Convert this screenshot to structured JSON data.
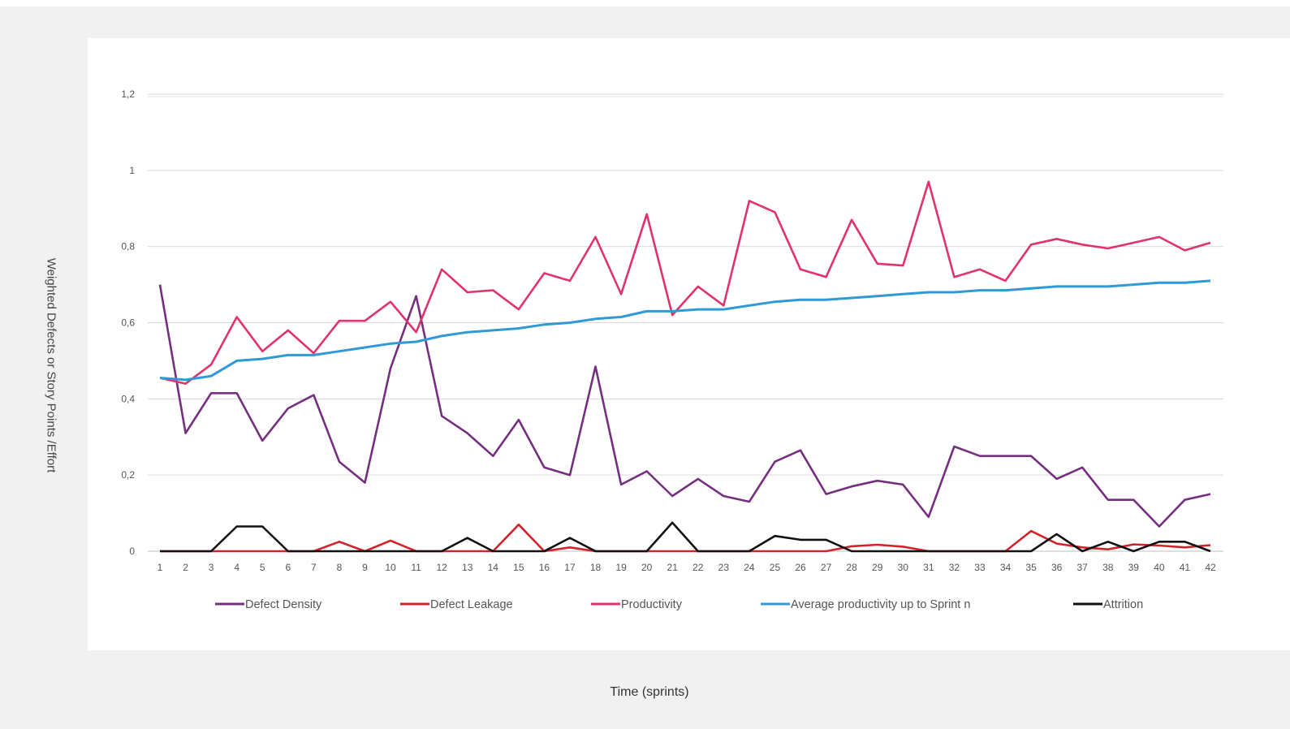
{
  "chart_data": {
    "type": "line",
    "title": "",
    "xlabel": "Time (sprints)",
    "ylabel": "Weighted Defects or Story Points /Effort",
    "ylim": [
      0,
      1.2
    ],
    "y_ticks": [
      "0",
      "0,2",
      "0,4",
      "0,6",
      "0,8",
      "1",
      "1,2"
    ],
    "x": [
      "1",
      "2",
      "3",
      "4",
      "5",
      "6",
      "7",
      "8",
      "9",
      "10",
      "11",
      "12",
      "13",
      "14",
      "15",
      "16",
      "17",
      "18",
      "19",
      "20",
      "21",
      "22",
      "23",
      "24",
      "25",
      "26",
      "27",
      "28",
      "29",
      "30",
      "31",
      "32",
      "33",
      "34",
      "35",
      "36",
      "37",
      "38",
      "39",
      "40",
      "41",
      "42"
    ],
    "grid": true,
    "legend_position": "bottom",
    "series": [
      {
        "name": "Defect Density",
        "color": "#74307f",
        "values": [
          0.7,
          0.31,
          0.415,
          0.415,
          0.29,
          0.375,
          0.41,
          0.235,
          0.18,
          0.48,
          0.67,
          0.355,
          0.31,
          0.25,
          0.345,
          0.22,
          0.2,
          0.485,
          0.175,
          0.21,
          0.145,
          0.19,
          0.145,
          0.13,
          0.235,
          0.265,
          0.15,
          0.17,
          0.185,
          0.175,
          0.09,
          0.275,
          0.25,
          0.25,
          0.25,
          0.19,
          0.22,
          0.135,
          0.135,
          0.065,
          0.135,
          0.15
        ]
      },
      {
        "name": "Defect Leakage",
        "color": "#d2232a",
        "values": [
          0,
          0,
          0,
          0,
          0,
          0,
          0,
          0.025,
          0,
          0.028,
          0,
          0,
          0,
          0,
          0.07,
          0,
          0.01,
          0,
          0,
          0,
          0,
          0,
          0,
          0,
          0,
          0,
          0,
          0.013,
          0.017,
          0.012,
          0,
          0,
          0,
          0,
          0.053,
          0.02,
          0.01,
          0.005,
          0.018,
          0.015,
          0.01,
          0.016
        ]
      },
      {
        "name": "Productivity",
        "color": "#e0336c",
        "values": [
          0.455,
          0.44,
          0.49,
          0.615,
          0.525,
          0.58,
          0.52,
          0.605,
          0.605,
          0.655,
          0.575,
          0.74,
          0.68,
          0.685,
          0.635,
          0.73,
          0.71,
          0.825,
          0.675,
          0.885,
          0.62,
          0.695,
          0.645,
          0.92,
          0.89,
          0.74,
          0.72,
          0.87,
          0.755,
          0.75,
          0.97,
          0.72,
          0.74,
          0.71,
          0.805,
          0.82,
          0.805,
          0.795,
          0.81,
          0.825,
          0.79,
          0.81
        ]
      },
      {
        "name": "Average productivity up to Sprint n",
        "color": "#2f9ad7",
        "values": [
          0.455,
          0.45,
          0.46,
          0.5,
          0.505,
          0.515,
          0.515,
          0.525,
          0.535,
          0.545,
          0.55,
          0.565,
          0.575,
          0.58,
          0.585,
          0.595,
          0.6,
          0.61,
          0.615,
          0.63,
          0.63,
          0.635,
          0.635,
          0.645,
          0.655,
          0.66,
          0.66,
          0.665,
          0.67,
          0.675,
          0.68,
          0.68,
          0.685,
          0.685,
          0.69,
          0.695,
          0.695,
          0.695,
          0.7,
          0.705,
          0.705,
          0.71
        ]
      },
      {
        "name": "Attrition",
        "color": "#111111",
        "values": [
          0,
          0,
          0,
          0.065,
          0.065,
          0,
          0,
          0,
          0,
          0,
          0,
          0,
          0.035,
          0,
          0,
          0,
          0.035,
          0,
          0,
          0,
          0.075,
          0,
          0,
          0,
          0.04,
          0.03,
          0.03,
          0,
          0,
          0,
          0,
          0,
          0,
          0,
          0,
          0.045,
          0,
          0.025,
          0,
          0.025,
          0.025,
          0
        ]
      }
    ]
  }
}
